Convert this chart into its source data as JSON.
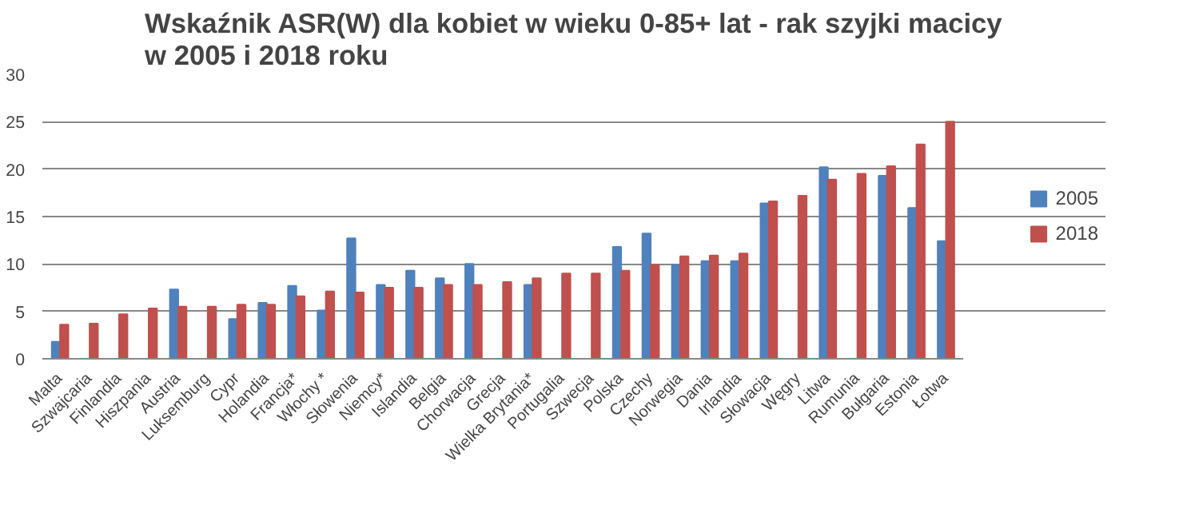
{
  "chart_data": {
    "type": "bar",
    "title": "Wskaźnik ASR(W) dla kobiet w wieku 0-85+ lat - rak szyjki macicy\nw 2005 i 2018 roku",
    "categories": [
      "Malta",
      "Szwajcaria",
      "Finlandia",
      "Hiszpania",
      "Austria",
      "Luksemburg",
      "Cypr",
      "Holandia",
      "Francja*",
      "Włochy *",
      "Słowenia",
      "Niemcy*",
      "Islandia",
      "Belgia",
      "Chorwacja",
      "Grecja",
      "Wielka Brytania*",
      "Portugalia",
      "Szwecja",
      "Polska",
      "Czechy",
      "Norwegia",
      "Dania",
      "Irlandia",
      "Słowacja",
      "Węgry",
      "Litwa",
      "Rumunia",
      "Bułgaria",
      "Estonia",
      "Łotwa"
    ],
    "series": [
      {
        "name": "2005",
        "color": "#4f81bd",
        "values": [
          1.8,
          null,
          null,
          null,
          7.3,
          null,
          4.2,
          5.9,
          7.7,
          5.1,
          12.7,
          7.8,
          9.3,
          8.5,
          10.0,
          null,
          7.8,
          null,
          null,
          11.8,
          13.2,
          9.9,
          10.3,
          10.3,
          16.4,
          null,
          20.2,
          null,
          19.3,
          15.9,
          12.4
        ]
      },
      {
        "name": "2018",
        "color": "#c0504d",
        "values": [
          3.6,
          3.7,
          4.7,
          5.3,
          5.5,
          5.5,
          5.7,
          5.7,
          6.6,
          7.1,
          7.0,
          7.5,
          7.5,
          7.8,
          7.8,
          8.1,
          8.5,
          9.0,
          9.0,
          9.3,
          9.9,
          10.8,
          10.9,
          11.1,
          16.6,
          17.2,
          18.9,
          19.5,
          20.3,
          22.6,
          25.0
        ]
      }
    ],
    "ylim": [
      0,
      30
    ],
    "yticks": [
      0,
      5,
      10,
      15,
      20,
      25,
      30
    ],
    "grid": "y",
    "legend": "right"
  }
}
